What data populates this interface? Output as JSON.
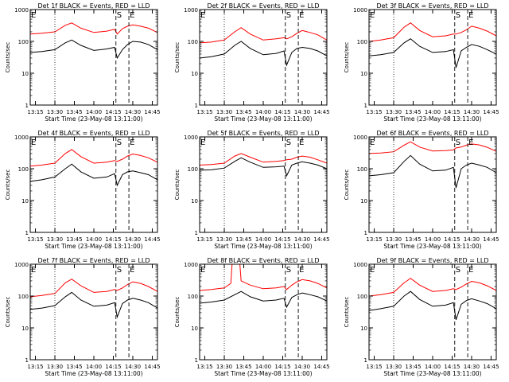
{
  "chart_data": {
    "type": "line",
    "ylabel": "Counts/sec",
    "xlabel": "Start Time (23-May-08 13:11:00)",
    "yscale": "log",
    "ylim": [
      1,
      1000
    ],
    "y_ticks": [
      {
        "value": 1,
        "label": "1"
      },
      {
        "value": 10,
        "label": "10"
      },
      {
        "value": 100,
        "label": "100"
      },
      {
        "value": 1000,
        "label": "1000"
      }
    ],
    "xlim": [
      "13:11",
      "14:49"
    ],
    "x_ticks": [
      "13:15",
      "13:30",
      "13:45",
      "14:00",
      "14:15",
      "14:30",
      "14:45"
    ],
    "series_colors": {
      "events": "#000000",
      "lld": "#ff0000"
    },
    "markers": [
      {
        "label": "E",
        "time": "13:11",
        "style": "none"
      },
      {
        "label": "S",
        "time": "14:17",
        "style": "dashed"
      },
      {
        "label": "E",
        "time": "14:27",
        "style": "dashed"
      }
    ],
    "reference_lines": [
      {
        "time": "13:30",
        "style": "dotted"
      }
    ],
    "panels": [
      {
        "title": "Det 1f BLACK = Events, RED = LLD",
        "series": [
          {
            "key": "events",
            "x": [
              "13:11",
              "13:20",
              "13:30",
              "13:38",
              "13:43",
              "13:50",
              "14:00",
              "14:10",
              "14:16",
              "14:18",
              "14:22",
              "14:26",
              "14:30",
              "14:36",
              "14:42",
              "14:49"
            ],
            "values": [
              45,
              48,
              55,
              90,
              110,
              75,
              52,
              58,
              65,
              30,
              55,
              80,
              100,
              95,
              80,
              55
            ]
          },
          {
            "key": "lld",
            "x": [
              "13:11",
              "13:20",
              "13:30",
              "13:38",
              "13:43",
              "13:50",
              "14:00",
              "14:10",
              "14:16",
              "14:18",
              "14:22",
              "14:26",
              "14:30",
              "14:36",
              "14:42",
              "14:49"
            ],
            "values": [
              170,
              180,
              200,
              320,
              380,
              260,
              190,
              210,
              240,
              170,
              250,
              300,
              330,
              300,
              260,
              190
            ]
          }
        ]
      },
      {
        "title": "Det 2f BLACK = Events, RED = LLD",
        "series": [
          {
            "key": "events",
            "x": [
              "13:11",
              "13:20",
              "13:30",
              "13:38",
              "13:43",
              "13:50",
              "14:00",
              "14:10",
              "14:16",
              "14:18",
              "14:22",
              "14:26",
              "14:30",
              "14:36",
              "14:42",
              "14:49"
            ],
            "values": [
              30,
              33,
              40,
              75,
              100,
              60,
              38,
              42,
              50,
              18,
              45,
              60,
              65,
              60,
              50,
              35
            ]
          },
          {
            "key": "lld",
            "x": [
              "13:11",
              "13:20",
              "13:30",
              "13:38",
              "13:43",
              "13:50",
              "14:00",
              "14:10",
              "14:16",
              "14:18",
              "14:22",
              "14:26",
              "14:30",
              "14:36",
              "14:42",
              "14:49"
            ],
            "values": [
              90,
              95,
              110,
              200,
              270,
              170,
              110,
              120,
              130,
              120,
              140,
              180,
              220,
              190,
              160,
              110
            ]
          }
        ]
      },
      {
        "title": "Det 3f BLACK = Events, RED = LLD",
        "series": [
          {
            "key": "events",
            "x": [
              "13:11",
              "13:20",
              "13:30",
              "13:38",
              "13:43",
              "13:50",
              "14:00",
              "14:10",
              "14:16",
              "14:18",
              "14:22",
              "14:26",
              "14:30",
              "14:36",
              "14:42",
              "14:49"
            ],
            "values": [
              35,
              38,
              45,
              90,
              120,
              70,
              45,
              48,
              55,
              15,
              50,
              65,
              80,
              70,
              55,
              40
            ]
          },
          {
            "key": "lld",
            "x": [
              "13:11",
              "13:20",
              "13:30",
              "13:38",
              "13:43",
              "13:50",
              "14:00",
              "14:10",
              "14:16",
              "14:18",
              "14:22",
              "14:26",
              "14:30",
              "14:36",
              "14:42",
              "14:49"
            ],
            "values": [
              100,
              110,
              130,
              280,
              380,
              220,
              140,
              150,
              170,
              170,
              190,
              230,
              300,
              260,
              210,
              150
            ]
          }
        ]
      },
      {
        "title": "Det 4f BLACK = Events, RED = LLD",
        "series": [
          {
            "key": "events",
            "x": [
              "13:11",
              "13:20",
              "13:30",
              "13:38",
              "13:43",
              "13:50",
              "14:00",
              "14:10",
              "14:16",
              "14:18",
              "14:22",
              "14:26",
              "14:30",
              "14:36",
              "14:42",
              "14:49"
            ],
            "values": [
              40,
              45,
              55,
              100,
              140,
              80,
              50,
              55,
              70,
              30,
              65,
              80,
              85,
              75,
              65,
              45
            ]
          },
          {
            "key": "lld",
            "x": [
              "13:11",
              "13:20",
              "13:30",
              "13:38",
              "13:43",
              "13:50",
              "14:00",
              "14:10",
              "14:16",
              "14:18",
              "14:22",
              "14:26",
              "14:30",
              "14:36",
              "14:42",
              "14:49"
            ],
            "values": [
              120,
              130,
              150,
              300,
              400,
              240,
              150,
              160,
              180,
              170,
              200,
              250,
              290,
              260,
              220,
              160
            ]
          }
        ]
      },
      {
        "title": "Det 5f BLACK = Events, RED = LLD",
        "series": [
          {
            "key": "events",
            "x": [
              "13:11",
              "13:20",
              "13:30",
              "13:38",
              "13:43",
              "13:50",
              "14:00",
              "14:10",
              "14:16",
              "14:18",
              "14:22",
              "14:26",
              "14:30",
              "14:36",
              "14:42",
              "14:49"
            ],
            "values": [
              90,
              92,
              105,
              170,
              220,
              160,
              110,
              115,
              120,
              60,
              130,
              150,
              165,
              150,
              130,
              100
            ]
          },
          {
            "key": "lld",
            "x": [
              "13:11",
              "13:20",
              "13:30",
              "13:38",
              "13:43",
              "13:50",
              "14:00",
              "14:10",
              "14:16",
              "14:18",
              "14:22",
              "14:26",
              "14:30",
              "14:36",
              "14:42",
              "14:49"
            ],
            "values": [
              130,
              135,
              150,
              250,
              300,
              230,
              160,
              170,
              180,
              190,
              200,
              230,
              250,
              230,
              190,
              150
            ]
          }
        ]
      },
      {
        "title": "Det 6f BLACK = Events, RED = LLD",
        "series": [
          {
            "key": "events",
            "x": [
              "13:11",
              "13:20",
              "13:30",
              "13:38",
              "13:43",
              "13:50",
              "14:00",
              "14:10",
              "14:16",
              "14:18",
              "14:22",
              "14:26",
              "14:30",
              "14:36",
              "14:42",
              "14:49"
            ],
            "values": [
              60,
              65,
              75,
              170,
              260,
              140,
              85,
              90,
              110,
              25,
              100,
              130,
              150,
              130,
              110,
              75
            ]
          },
          {
            "key": "lld",
            "x": [
              "13:11",
              "13:20",
              "13:30",
              "13:38",
              "13:43",
              "13:50",
              "14:00",
              "14:10",
              "14:16",
              "14:18",
              "14:22",
              "14:26",
              "14:30",
              "14:36",
              "14:42",
              "14:49"
            ],
            "values": [
              300,
              310,
              340,
              550,
              700,
              480,
              360,
              370,
              390,
              450,
              480,
              550,
              600,
              560,
              470,
              350
            ]
          }
        ]
      },
      {
        "title": "Det 7f BLACK = Events, RED = LLD",
        "series": [
          {
            "key": "events",
            "x": [
              "13:11",
              "13:20",
              "13:30",
              "13:38",
              "13:43",
              "13:50",
              "14:00",
              "14:10",
              "14:16",
              "14:18",
              "14:22",
              "14:26",
              "14:30",
              "14:36",
              "14:42",
              "14:49"
            ],
            "values": [
              38,
              42,
              50,
              95,
              130,
              75,
              48,
              52,
              62,
              22,
              58,
              75,
              85,
              75,
              62,
              42
            ]
          },
          {
            "key": "lld",
            "x": [
              "13:11",
              "13:20",
              "13:30",
              "13:38",
              "13:43",
              "13:50",
              "14:00",
              "14:10",
              "14:16",
              "14:18",
              "14:22",
              "14:26",
              "14:30",
              "14:36",
              "14:42",
              "14:49"
            ],
            "values": [
              95,
              105,
              120,
              260,
              340,
              210,
              130,
              140,
              160,
              150,
              180,
              230,
              280,
              250,
              200,
              140
            ]
          }
        ]
      },
      {
        "title": "Det 8f BLACK = Events, RED = LLD",
        "series": [
          {
            "key": "events",
            "x": [
              "13:11",
              "13:20",
              "13:30",
              "13:38",
              "13:43",
              "13:50",
              "14:00",
              "14:10",
              "14:16",
              "14:18",
              "14:22",
              "14:26",
              "14:30",
              "14:36",
              "14:42",
              "14:49"
            ],
            "values": [
              60,
              65,
              75,
              110,
              140,
              95,
              70,
              75,
              85,
              45,
              90,
              110,
              125,
              110,
              95,
              70
            ]
          },
          {
            "key": "lld",
            "x": [
              "13:11",
              "13:20",
              "13:30",
              "13:35",
              "13:36",
              "13:42",
              "13:43",
              "13:50",
              "14:00",
              "14:10",
              "14:16",
              "14:18",
              "14:22",
              "14:26",
              "14:30",
              "14:36",
              "14:42",
              "14:49"
            ],
            "values": [
              150,
              160,
              180,
              250,
              1000,
              1000,
              300,
              220,
              170,
              180,
              200,
              160,
              220,
              280,
              330,
              300,
              250,
              180
            ]
          }
        ]
      },
      {
        "title": "Det 9f BLACK = Events, RED = LLD",
        "series": [
          {
            "key": "events",
            "x": [
              "13:11",
              "13:20",
              "13:30",
              "13:38",
              "13:43",
              "13:50",
              "14:00",
              "14:10",
              "14:16",
              "14:18",
              "14:22",
              "14:26",
              "14:30",
              "14:36",
              "14:42",
              "14:49"
            ],
            "values": [
              35,
              40,
              48,
              100,
              140,
              78,
              48,
              52,
              62,
              18,
              55,
              72,
              82,
              70,
              58,
              40
            ]
          },
          {
            "key": "lld",
            "x": [
              "13:11",
              "13:20",
              "13:30",
              "13:38",
              "13:43",
              "13:50",
              "14:00",
              "14:10",
              "14:16",
              "14:18",
              "14:22",
              "14:26",
              "14:30",
              "14:36",
              "14:42",
              "14:49"
            ],
            "values": [
              100,
              110,
              130,
              260,
              360,
              220,
              140,
              150,
              170,
              160,
              190,
              240,
              290,
              260,
              210,
              150
            ]
          }
        ]
      }
    ]
  }
}
